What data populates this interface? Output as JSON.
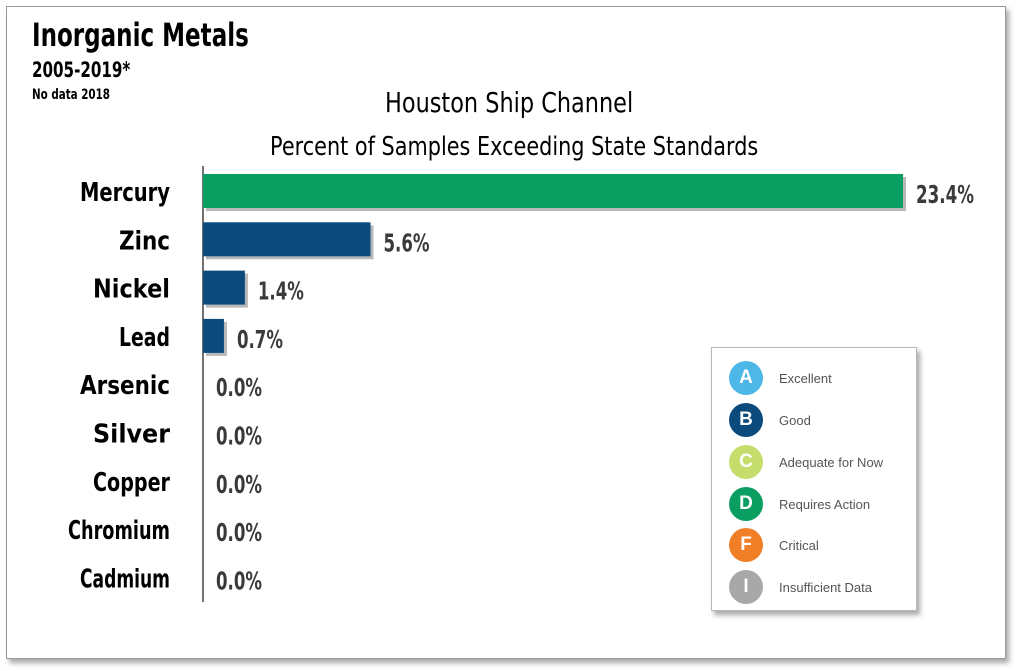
{
  "header": {
    "title": "Inorganic Metals",
    "years": "2005-2019*",
    "note": "No data 2018"
  },
  "chart_data": {
    "type": "bar",
    "orientation": "horizontal",
    "title": "Houston Ship Channel",
    "subtitle": "Percent of Samples Exceeding State Standards",
    "categories": [
      "Mercury",
      "Zinc",
      "Nickel",
      "Lead",
      "Arsenic",
      "Silver",
      "Copper",
      "Chromium",
      "Cadmium"
    ],
    "values": [
      23.4,
      5.6,
      1.4,
      0.7,
      0.0,
      0.0,
      0.0,
      0.0,
      0.0
    ],
    "labels": [
      "23.4%",
      "5.6%",
      "1.4%",
      "0.7%",
      "0.0%",
      "0.0%",
      "0.0%",
      "0.0%",
      "0.0%"
    ],
    "bar_colors": [
      "#0a9e63",
      "#0b4a7c",
      "#0b4a7c",
      "#0b4a7c",
      "#0b4a7c",
      "#0b4a7c",
      "#0b4a7c",
      "#0b4a7c",
      "#0b4a7c"
    ],
    "xlim": [
      0,
      23.4
    ],
    "grid": false
  },
  "legend": {
    "items": [
      {
        "letter": "A",
        "label": "Excellent",
        "color": "#4db8e8"
      },
      {
        "letter": "B",
        "label": "Good",
        "color": "#0b4a7c"
      },
      {
        "letter": "C",
        "label": "Adequate for Now",
        "color": "#c5dd6a"
      },
      {
        "letter": "D",
        "label": "Requires Action",
        "color": "#0a9e63"
      },
      {
        "letter": "F",
        "label": "Critical",
        "color": "#f07f28"
      },
      {
        "letter": "I",
        "label": "Insufficient Data",
        "color": "#a8a8a8"
      }
    ]
  }
}
